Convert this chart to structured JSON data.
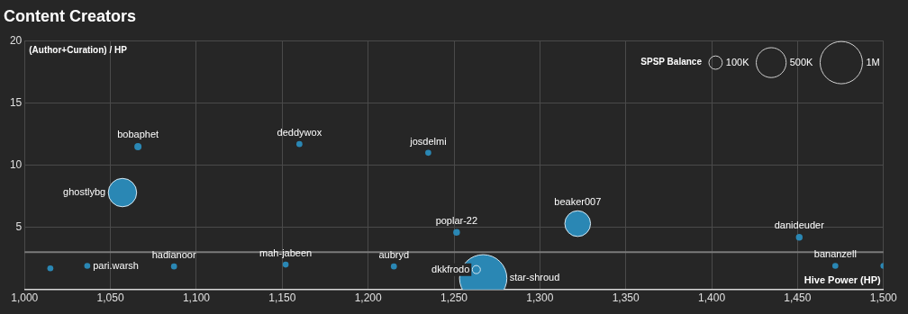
{
  "chart_data": {
    "type": "bubble",
    "title": "Content Creators",
    "xlabel": "Hive Power (HP)",
    "ylabel": "(Author+Curation) / HP",
    "legend_title": "SPSP Balance",
    "x": [
      1015,
      1036.5,
      1057,
      1066,
      1087,
      1152,
      1160,
      1215,
      1235,
      1251.5,
      1267,
      1263,
      1322,
      1451,
      1472,
      1500
    ],
    "values": [
      1.7,
      1.9,
      7.8,
      11.5,
      1.85,
      2.0,
      11.7,
      1.85,
      11.0,
      4.6,
      0.9,
      1.6,
      5.3,
      4.2,
      1.9,
      1.9
    ],
    "sizes": [
      20000,
      20000,
      450000,
      29000,
      20000,
      20000,
      20000,
      20000,
      20000,
      25000,
      1250000,
      37000,
      370000,
      25000,
      20000,
      20000
    ],
    "size_legend": [
      {
        "value": 100000,
        "label": "100K"
      },
      {
        "value": 500000,
        "label": "500K"
      },
      {
        "value": 1000000,
        "label": "1M"
      }
    ],
    "color": "#2a87b4",
    "annotations": [
      {
        "text": "pari.warsh",
        "x": 1036.5,
        "y": 1.9
      },
      {
        "text": "ghostlybg",
        "x": 1057,
        "y": 7.8
      },
      {
        "text": "bobaphet",
        "x": 1066,
        "y": 11.5
      },
      {
        "text": "hadianoor",
        "x": 1087,
        "y": 1.85
      },
      {
        "text": "mah-jabeen",
        "x": 1152,
        "y": 2.0
      },
      {
        "text": "deddywox",
        "x": 1160,
        "y": 11.7
      },
      {
        "text": "aubryd",
        "x": 1215,
        "y": 1.85
      },
      {
        "text": "josdelmi",
        "x": 1235,
        "y": 11.0
      },
      {
        "text": "poplar-22",
        "x": 1251.5,
        "y": 4.6
      },
      {
        "text": "star-shroud",
        "x": 1267,
        "y": 0.9
      },
      {
        "text": "dkkfrodo",
        "x": 1263,
        "y": 1.6
      },
      {
        "text": "beaker007",
        "x": 1322,
        "y": 5.3
      },
      {
        "text": "danideuder",
        "x": 1451,
        "y": 4.2
      },
      {
        "text": "bananzell",
        "x": 1472,
        "y": 1.9
      }
    ],
    "ref_lines": [
      {
        "axis": "y",
        "value": 3,
        "color": "#7a7a7a"
      }
    ],
    "xlim": [
      1000,
      1500
    ],
    "xticks": [
      {
        "value": 1000,
        "label": "1,000"
      },
      {
        "value": 1050,
        "label": "1,050"
      },
      {
        "value": 1100,
        "label": "1,100"
      },
      {
        "value": 1150,
        "label": "1,150"
      },
      {
        "value": 1200,
        "label": "1,200"
      },
      {
        "value": 1250,
        "label": "1,250"
      },
      {
        "value": 1300,
        "label": "1,300"
      },
      {
        "value": 1350,
        "label": "1,350"
      },
      {
        "value": 1400,
        "label": "1,400"
      },
      {
        "value": 1450,
        "label": "1,450"
      },
      {
        "value": 1500,
        "label": "1,500"
      }
    ],
    "ylim": [
      0,
      20
    ],
    "yticks": [
      5,
      10,
      15,
      20
    ],
    "grid": true
  }
}
